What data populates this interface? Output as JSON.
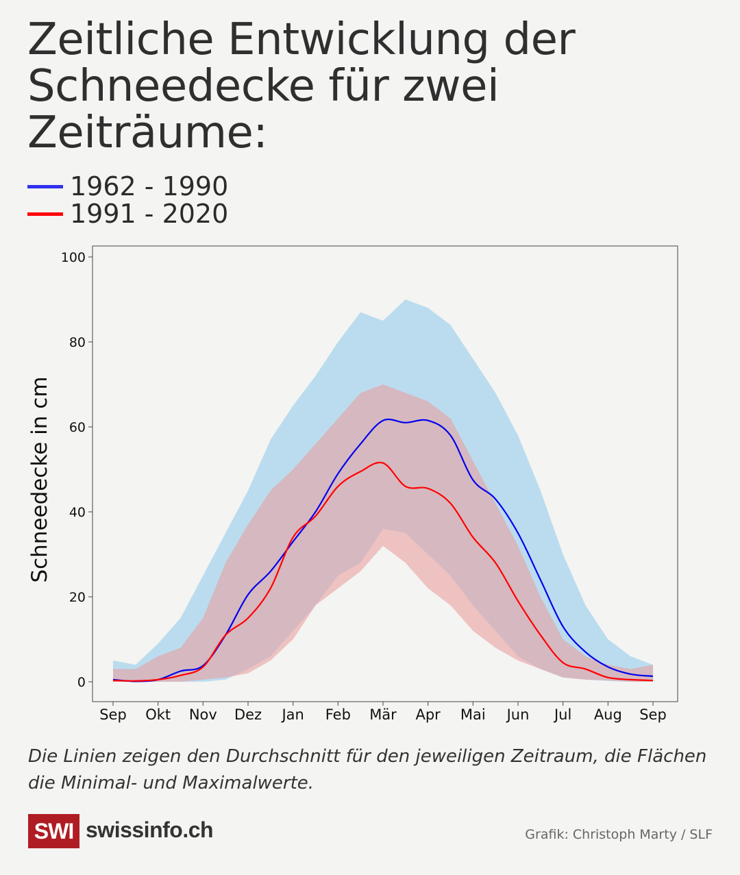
{
  "title": "Zeitliche Entwicklung der Schneedecke für zwei Zeiträume:",
  "caption": "Die Linien zeigen den Durchschnitt für den jeweiligen Zeitraum, die Flächen die Minimal- und Maximalwerte.",
  "footer": {
    "logo": "SWI",
    "brand": "swissinfo.ch",
    "credit": "Grafik: Christoph Marty / SLF"
  },
  "colors": {
    "brand": "#b01c23",
    "line_1962": "#0000ee",
    "line_1991": "#ff0000",
    "band_1962": "#a8d4ee",
    "band_1991": "#e8a0a0"
  },
  "chart_data": {
    "type": "line",
    "xlabel": "",
    "ylabel": "Schneedecke in cm",
    "ylim": [
      0,
      100
    ],
    "yticks": [
      0,
      20,
      40,
      60,
      80,
      100
    ],
    "xtick_labels": [
      "Sep",
      "Okt",
      "Nov",
      "Dez",
      "Jan",
      "Feb",
      "Mär",
      "Apr",
      "Mai",
      "Jun",
      "Jul",
      "Aug",
      "Sep"
    ],
    "grid": false,
    "legend_placement": "top-left, above chart",
    "x_months": [
      0,
      0.5,
      1,
      1.5,
      2,
      2.5,
      3,
      3.5,
      4,
      4.5,
      5,
      5.5,
      6,
      6.5,
      7,
      7.5,
      8,
      8.5,
      9,
      9.5,
      10,
      10.5,
      11,
      11.5,
      12
    ],
    "series": [
      {
        "name": "1962 - 1990",
        "color": "#0000ee",
        "band_color": "#a8d4ee",
        "mean": [
          0.5,
          0.1,
          0.5,
          2.5,
          3.8,
          11,
          20.5,
          26,
          33,
          40,
          49,
          56,
          61.5,
          61,
          61.5,
          58,
          47.5,
          43,
          35,
          24,
          13,
          7,
          3.5,
          1.8,
          1.3
        ],
        "max": [
          5,
          4,
          9,
          15,
          25,
          35,
          45,
          57,
          65,
          72,
          80,
          87,
          85,
          90,
          88,
          84,
          76,
          68,
          58,
          45,
          30,
          18,
          10,
          6,
          4
        ],
        "min": [
          0,
          0,
          0,
          0,
          0,
          0.5,
          3,
          6,
          12,
          18,
          25,
          28,
          36,
          35,
          30,
          25,
          18,
          12,
          6,
          3,
          1,
          0.5,
          0.2,
          0,
          0
        ]
      },
      {
        "name": "1991 - 2020",
        "color": "#ff0000",
        "band_color": "#e8a0a0",
        "mean": [
          0.3,
          0.2,
          0.5,
          1.5,
          3.5,
          11,
          15,
          22,
          34,
          39,
          46,
          49.5,
          51.5,
          46,
          45.5,
          42,
          34,
          28,
          19,
          11,
          4.5,
          3,
          1,
          0.5,
          0.3
        ],
        "max": [
          3,
          3,
          6,
          8,
          15,
          28,
          37,
          45,
          50,
          56,
          62,
          68,
          70,
          68,
          66,
          62,
          52,
          42,
          32,
          20,
          10,
          6,
          4,
          3,
          4
        ],
        "min": [
          0,
          0,
          0,
          0,
          0.5,
          1,
          2,
          5,
          10,
          18,
          22,
          26,
          32,
          28,
          22,
          18,
          12,
          8,
          5,
          3,
          1,
          0.5,
          0.3,
          0,
          0
        ]
      }
    ]
  }
}
